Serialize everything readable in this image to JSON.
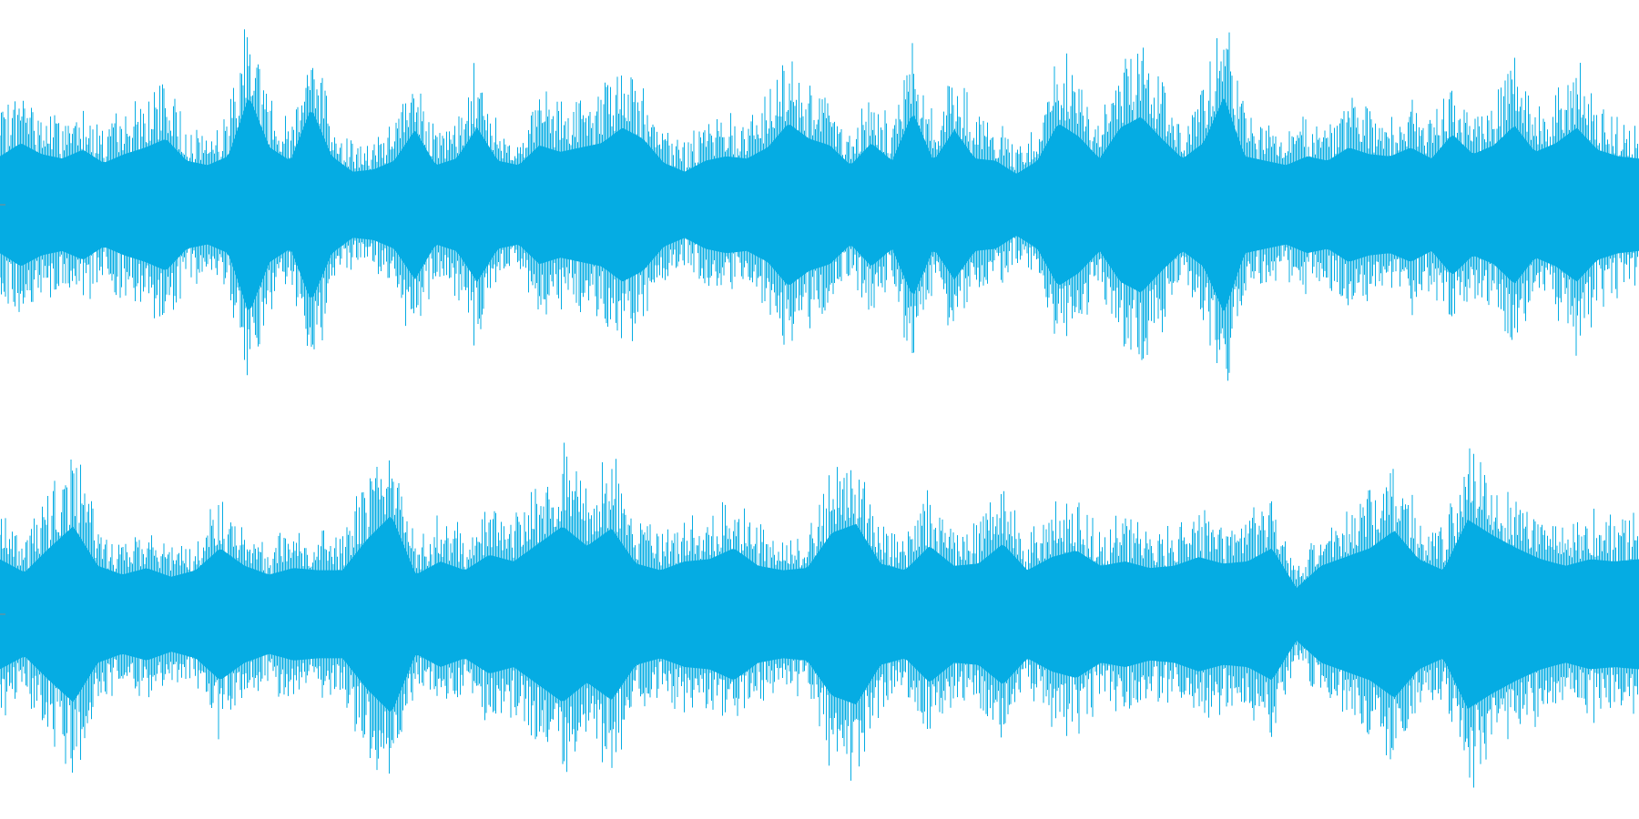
{
  "waveform": {
    "color": "#05ace3",
    "background": "#ffffff",
    "channels": [
      {
        "name": "upper",
        "envelope": [
          0.44,
          0.56,
          0.46,
          0.42,
          0.5,
          0.38,
          0.46,
          0.52,
          0.6,
          0.4,
          0.36,
          0.44,
          0.99,
          0.52,
          0.4,
          0.88,
          0.44,
          0.3,
          0.32,
          0.4,
          0.68,
          0.36,
          0.42,
          0.7,
          0.4,
          0.36,
          0.54,
          0.48,
          0.52,
          0.56,
          0.7,
          0.6,
          0.38,
          0.3,
          0.4,
          0.44,
          0.42,
          0.52,
          0.74,
          0.6,
          0.54,
          0.36,
          0.56,
          0.4,
          0.84,
          0.4,
          0.68,
          0.42,
          0.4,
          0.28,
          0.4,
          0.74,
          0.62,
          0.42,
          0.7,
          0.8,
          0.6,
          0.42,
          0.56,
          0.98,
          0.44,
          0.4,
          0.36,
          0.44,
          0.4,
          0.52,
          0.46,
          0.44,
          0.52,
          0.42,
          0.64,
          0.46,
          0.54,
          0.72,
          0.48,
          0.56,
          0.7,
          0.5,
          0.44,
          0.42
        ]
      },
      {
        "name": "lower",
        "envelope": [
          0.5,
          0.38,
          0.6,
          0.8,
          0.44,
          0.36,
          0.42,
          0.34,
          0.4,
          0.6,
          0.44,
          0.36,
          0.42,
          0.4,
          0.4,
          0.68,
          0.9,
          0.36,
          0.48,
          0.4,
          0.54,
          0.48,
          0.64,
          0.8,
          0.62,
          0.78,
          0.46,
          0.4,
          0.48,
          0.5,
          0.6,
          0.44,
          0.4,
          0.42,
          0.74,
          0.82,
          0.46,
          0.4,
          0.62,
          0.44,
          0.46,
          0.64,
          0.4,
          0.52,
          0.58,
          0.44,
          0.48,
          0.42,
          0.44,
          0.52,
          0.46,
          0.48,
          0.6,
          0.24,
          0.44,
          0.52,
          0.6,
          0.76,
          0.5,
          0.4,
          0.86,
          0.72,
          0.6,
          0.5,
          0.44,
          0.5,
          0.48,
          0.5
        ]
      }
    ]
  }
}
